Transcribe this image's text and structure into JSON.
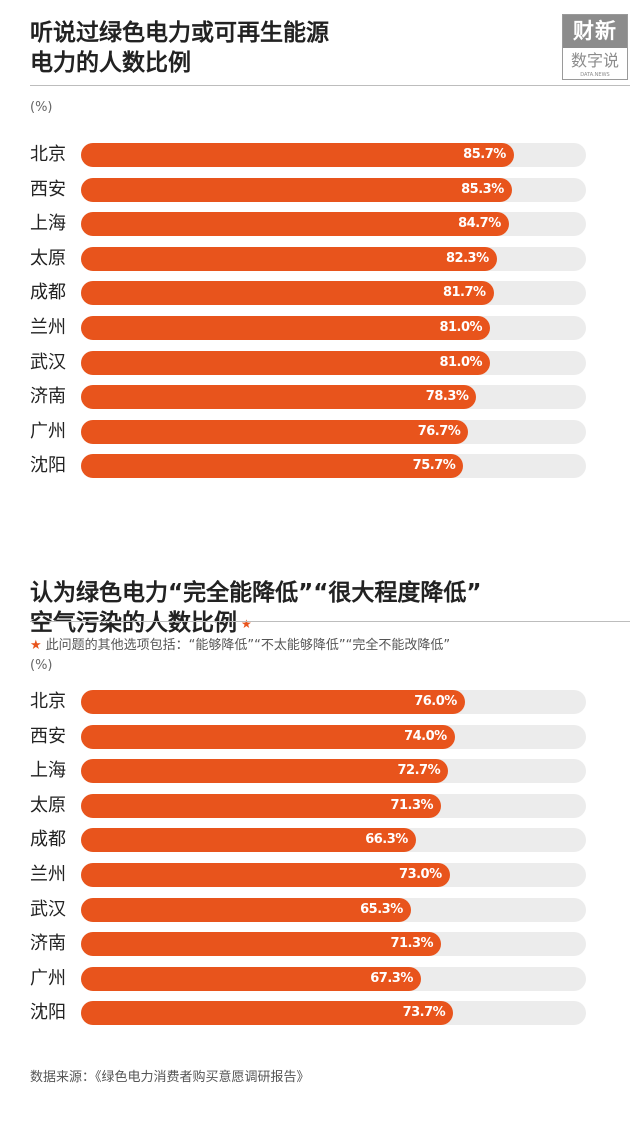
{
  "logo": {
    "top": "财新",
    "bottom": "数字说",
    "tiny": "DATA.NEWS"
  },
  "chart_data": [
    {
      "type": "bar",
      "orientation": "horizontal",
      "title": "听说过绿色电力或可再生能源\n电力的人数比例",
      "unit": "(%)",
      "categories": [
        "北京",
        "西安",
        "上海",
        "太原",
        "成都",
        "兰州",
        "武汉",
        "济南",
        "广州",
        "沈阳"
      ],
      "values": [
        85.7,
        85.3,
        84.7,
        82.3,
        81.7,
        81.0,
        81.0,
        78.3,
        76.7,
        75.7
      ],
      "labels": [
        "85.7%",
        "85.3%",
        "84.7%",
        "82.3%",
        "81.7%",
        "81.0%",
        "81.0%",
        "78.3%",
        "76.7%",
        "75.7%"
      ],
      "xlim": [
        0,
        100
      ],
      "bar_color": "#e8541c",
      "track_color": "#ececec"
    },
    {
      "type": "bar",
      "orientation": "horizontal",
      "title": "认为绿色电力“完全能降低”“很大程度降低”\n空气污染的人数比例",
      "title_marker": "★",
      "note": "此问题的其他选项包括：“能够降低”“不太能够降低”“完全不能改降低”",
      "note_marker": "★",
      "unit": "(%)",
      "categories": [
        "北京",
        "西安",
        "上海",
        "太原",
        "成都",
        "兰州",
        "武汉",
        "济南",
        "广州",
        "沈阳"
      ],
      "values": [
        76.0,
        74.0,
        72.7,
        71.3,
        66.3,
        73.0,
        65.3,
        71.3,
        67.3,
        73.7
      ],
      "labels": [
        "76.0%",
        "74.0%",
        "72.7%",
        "71.3%",
        "66.3%",
        "73.0%",
        "65.3%",
        "71.3%",
        "67.3%",
        "73.7%"
      ],
      "xlim": [
        0,
        100
      ],
      "bar_color": "#e8541c",
      "track_color": "#ececec"
    }
  ],
  "source": "数据来源：《绿色电力消费者购买意愿调研报告》"
}
